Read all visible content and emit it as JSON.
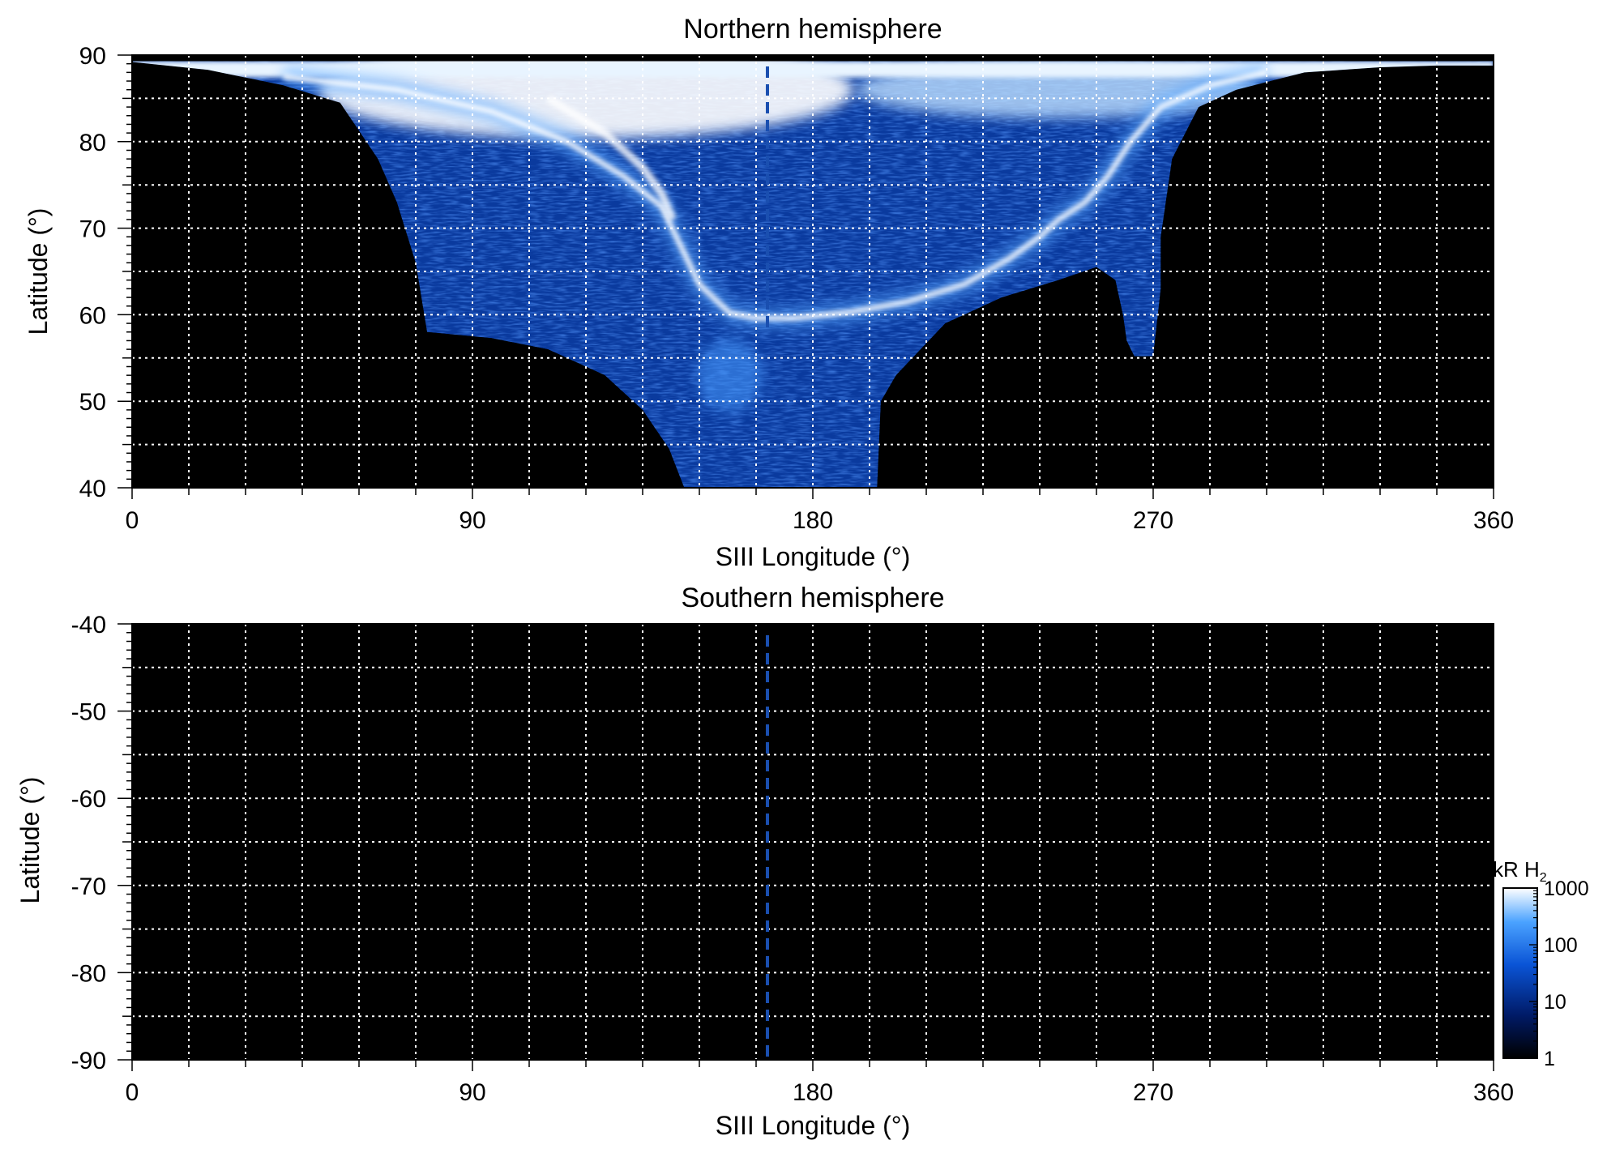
{
  "chart_data": [
    {
      "type": "heatmap",
      "title": "Northern hemisphere",
      "xlabel": "SIII Longitude (°)",
      "ylabel": "Latitude (°)",
      "xlim": [
        0,
        360
      ],
      "ylim": [
        40,
        90
      ],
      "xticks": [
        0,
        90,
        180,
        270,
        360
      ],
      "yticks": [
        40,
        50,
        60,
        70,
        80,
        90
      ],
      "xticks_label": [
        "0",
        "90",
        "180",
        "270",
        "360"
      ],
      "yticks_label": [
        "40",
        "50",
        "60",
        "70",
        "80",
        "90"
      ],
      "grid": true,
      "grid_dx": 15,
      "grid_dy": 5,
      "background": "#000000",
      "dashed_meridian_lon": 168,
      "meridian_color": "#1a4fb0",
      "coverage_lower_edge": [
        [
          0,
          89.2
        ],
        [
          20,
          88.3
        ],
        [
          40,
          86.5
        ],
        [
          55,
          84.5
        ],
        [
          65,
          78
        ],
        [
          70,
          73
        ],
        [
          75,
          66
        ],
        [
          78,
          58
        ],
        [
          95,
          57.3
        ],
        [
          110,
          56
        ],
        [
          125,
          53
        ],
        [
          135,
          49
        ],
        [
          142,
          44.5
        ],
        [
          146,
          40
        ],
        [
          197,
          40
        ],
        [
          198,
          50
        ],
        [
          202,
          53
        ],
        [
          215,
          59
        ],
        [
          230,
          62
        ],
        [
          245,
          64
        ],
        [
          255,
          65.5
        ],
        [
          260,
          64
        ],
        [
          262,
          60
        ],
        [
          263,
          57
        ],
        [
          265,
          55.2
        ],
        [
          270,
          55.2
        ],
        [
          272,
          63
        ],
        [
          272,
          69
        ],
        [
          275,
          78
        ],
        [
          282,
          84
        ],
        [
          292,
          86
        ],
        [
          310,
          88
        ],
        [
          330,
          88.6
        ],
        [
          345,
          88.8
        ],
        [
          360,
          88.8
        ]
      ],
      "oval_trace": [
        [
          40,
          87.5
        ],
        [
          70,
          86
        ],
        [
          95,
          83.5
        ],
        [
          115,
          80
        ],
        [
          130,
          76
        ],
        [
          140,
          72.5
        ],
        [
          145,
          68
        ],
        [
          150,
          63.5
        ],
        [
          158,
          60.2
        ],
        [
          165,
          59.6
        ],
        [
          175,
          59.6
        ],
        [
          190,
          60.3
        ],
        [
          205,
          61.5
        ],
        [
          220,
          63.5
        ],
        [
          232,
          66.5
        ],
        [
          240,
          69
        ],
        [
          245,
          71
        ],
        [
          252,
          73
        ],
        [
          258,
          76
        ],
        [
          264,
          80
        ],
        [
          272,
          84
        ],
        [
          285,
          86.5
        ],
        [
          300,
          88
        ]
      ],
      "inner_arc_trace": [
        [
          110,
          85
        ],
        [
          125,
          81
        ],
        [
          135,
          77
        ],
        [
          140,
          74
        ],
        [
          143,
          71
        ]
      ]
    },
    {
      "type": "heatmap",
      "title": "Southern hemisphere",
      "xlabel": "SIII Longitude (°)",
      "ylabel": "Latitude (°)",
      "xlim": [
        0,
        360
      ],
      "ylim": [
        -90,
        -40
      ],
      "xticks": [
        0,
        90,
        180,
        270,
        360
      ],
      "yticks": [
        -90,
        -80,
        -70,
        -60,
        -50,
        -40
      ],
      "xticks_label": [
        "0",
        "90",
        "180",
        "270",
        "360"
      ],
      "yticks_label": [
        "-90",
        "-80",
        "-70",
        "-60",
        "-50",
        "-40"
      ],
      "grid": true,
      "grid_dx": 15,
      "grid_dy": 5,
      "background": "#000000",
      "dashed_meridian_lon": 168,
      "meridian_color": "#1a4fb0"
    }
  ],
  "colorbar": {
    "label": "kR H",
    "label_subscript": "2",
    "scale": "log",
    "range": [
      1,
      1000
    ],
    "ticks": [
      1,
      10,
      100,
      1000
    ],
    "ticks_label": [
      "1",
      "10",
      "100",
      "1000"
    ],
    "colors": [
      "#000000",
      "#001a66",
      "#0a54d6",
      "#4aa2ff",
      "#ffffff"
    ]
  }
}
